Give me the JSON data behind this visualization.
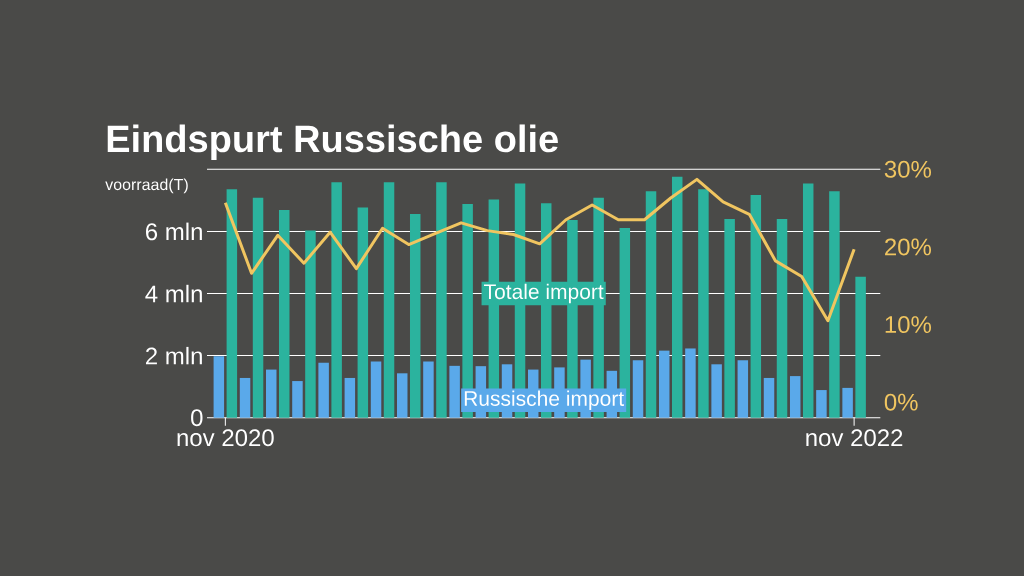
{
  "chart_data": {
    "type": "bar",
    "title": "Eindspurt Russische olie",
    "ylabel": "voorraad(T)",
    "categories": [
      "nov 2020",
      null,
      null,
      null,
      null,
      null,
      null,
      null,
      null,
      null,
      null,
      null,
      null,
      null,
      null,
      null,
      null,
      null,
      null,
      null,
      null,
      null,
      null,
      null,
      "nov 2022"
    ],
    "series": [
      {
        "name": "Russische import",
        "color": "#5aa9ea",
        "values": [
          1.98,
          1.28,
          1.55,
          1.18,
          1.77,
          1.28,
          1.81,
          1.43,
          1.81,
          1.67,
          1.66,
          1.72,
          1.55,
          1.62,
          1.87,
          1.51,
          1.85,
          2.16,
          2.23,
          1.72,
          1.85,
          1.28,
          1.34,
          0.89,
          0.96
        ]
      },
      {
        "name": "Totale import",
        "color": "#2bb39e",
        "values": [
          7.36,
          7.08,
          6.69,
          6.03,
          7.58,
          6.77,
          7.58,
          6.56,
          7.58,
          6.88,
          7.03,
          7.54,
          6.91,
          6.37,
          7.08,
          6.11,
          7.29,
          7.76,
          7.36,
          6.4,
          7.17,
          6.4,
          7.54,
          7.29,
          4.54
        ]
      },
      {
        "type": "line",
        "axis": "y2",
        "color": "#f0c560",
        "values": [
          25.7,
          16.6,
          21.5,
          17.9,
          21.9,
          17.2,
          22.4,
          20.3,
          21.7,
          23.1,
          22.1,
          21.6,
          20.4,
          23.5,
          25.4,
          23.5,
          23.5,
          26.3,
          28.7,
          25.8,
          24.2,
          18.2,
          16.2,
          10.5,
          19.7
        ]
      }
    ],
    "ylim": [
      0,
      8
    ],
    "yticks": [
      0,
      {
        "value": 2,
        "label": "2 mln"
      },
      {
        "value": 4,
        "label": "4 mln"
      },
      {
        "value": 6,
        "label": "6 mln"
      },
      {
        "value": 8,
        "label": null
      }
    ],
    "y2lim": [
      -2,
      30
    ],
    "y2ticks": [
      {
        "value": 0,
        "label": "0%"
      },
      {
        "value": 10,
        "label": "10%"
      },
      {
        "value": 20,
        "label": "20%"
      },
      {
        "value": 30,
        "label": "30%"
      }
    ],
    "grid": "y"
  }
}
